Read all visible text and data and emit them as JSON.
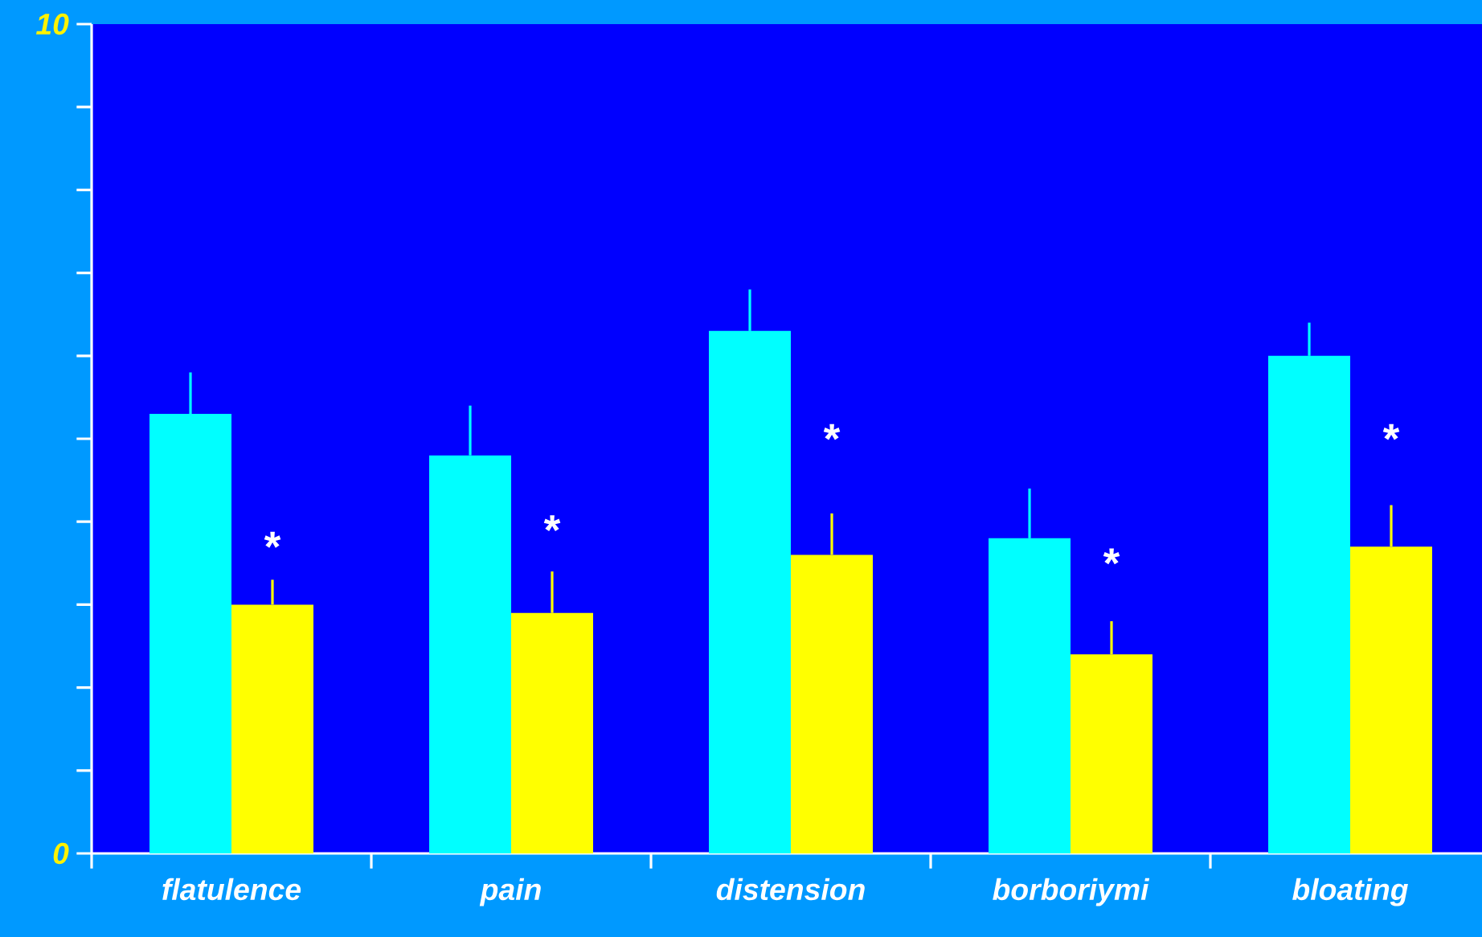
{
  "chart_data": {
    "type": "bar",
    "categories": [
      "flatulence",
      "pain",
      "distension",
      "borboriymi",
      "bloating"
    ],
    "series": [
      {
        "color": "#00ffff",
        "values": [
          5.3,
          4.8,
          6.3,
          3.8,
          6.0
        ],
        "errors": [
          [
            5.3,
            5.8
          ],
          [
            4.8,
            5.4
          ],
          [
            6.3,
            6.8
          ],
          [
            3.8,
            4.4
          ],
          [
            6.0,
            6.4
          ]
        ]
      },
      {
        "color": "#ffff00",
        "values": [
          3.0,
          2.9,
          3.6,
          2.4,
          3.7
        ],
        "errors": [
          [
            3.0,
            3.3
          ],
          [
            2.9,
            3.4
          ],
          [
            3.6,
            4.1
          ],
          [
            2.4,
            2.8
          ],
          [
            3.7,
            4.2
          ]
        ]
      }
    ],
    "ylim": [
      0,
      10
    ],
    "yticks": [
      0,
      {
        "value": 1,
        "label": null
      },
      {
        "value": 2,
        "label": null
      },
      {
        "value": 3,
        "label": null
      },
      {
        "value": 4,
        "label": null
      },
      {
        "value": 5,
        "label": null
      },
      {
        "value": 6,
        "label": null
      },
      {
        "value": 7,
        "label": null
      },
      {
        "value": 8,
        "label": null
      },
      {
        "value": 9,
        "label": null
      },
      10
    ],
    "annotations": [
      {
        "text": "*",
        "x": "flatulence",
        "y": 3.7
      },
      {
        "text": "*",
        "x": "pain",
        "y": 3.9
      },
      {
        "text": "*",
        "x": "distension",
        "y": 5.0
      },
      {
        "text": "*",
        "x": "borboriymi",
        "y": 3.5
      },
      {
        "text": "*",
        "x": "bloating",
        "y": 5.0
      }
    ],
    "grid": false
  }
}
